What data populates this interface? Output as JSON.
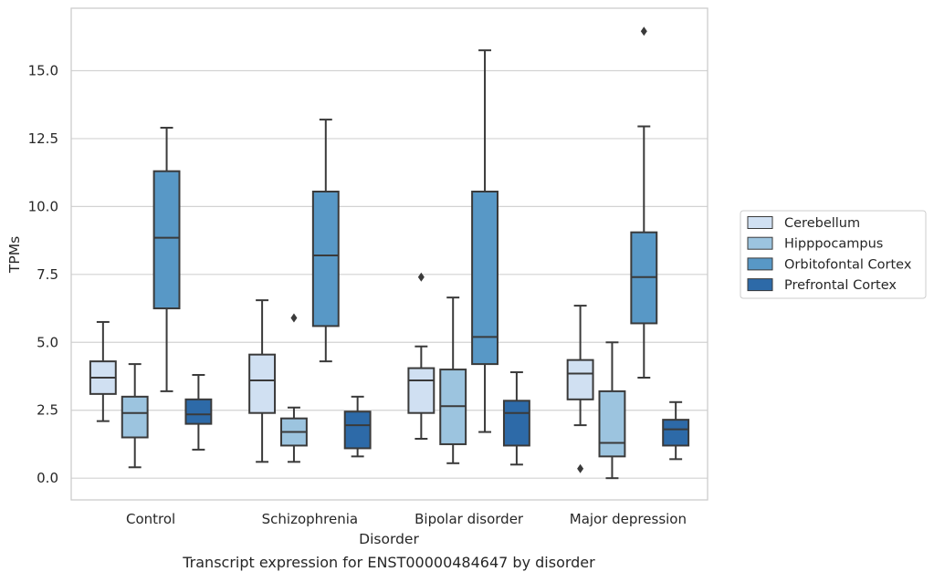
{
  "caption": "Transcript expression for ENST00000484647 by disorder",
  "chart_data": {
    "type": "boxplot",
    "title": "",
    "xlabel": "Disorder",
    "ylabel": "TPMs",
    "ylim": [
      -0.8,
      17.3
    ],
    "yticks": [
      0.0,
      2.5,
      5.0,
      7.5,
      10.0,
      12.5,
      15.0
    ],
    "ytick_labels": [
      "0.0",
      "2.5",
      "5.0",
      "7.5",
      "10.0",
      "12.5",
      "15.0"
    ],
    "grid": "horizontal",
    "legend_position": "right",
    "categories": [
      "Control",
      "Schizophrenia",
      "Bipolar disorder",
      "Major depression"
    ],
    "series": [
      {
        "name": "Cerebellum",
        "color": "#d0e0f2",
        "boxes": [
          {
            "whislo": 2.1,
            "q1": 3.1,
            "med": 3.7,
            "q3": 4.3,
            "whishi": 5.75,
            "fliers": []
          },
          {
            "whislo": 0.6,
            "q1": 2.4,
            "med": 3.6,
            "q3": 4.55,
            "whishi": 6.55,
            "fliers": []
          },
          {
            "whislo": 1.45,
            "q1": 2.4,
            "med": 3.6,
            "q3": 4.05,
            "whishi": 4.85,
            "fliers": [
              7.4
            ]
          },
          {
            "whislo": 1.95,
            "q1": 2.9,
            "med": 3.85,
            "q3": 4.35,
            "whishi": 6.35,
            "fliers": [
              0.35
            ]
          }
        ]
      },
      {
        "name": "Hipppocampus",
        "color": "#9cc4df",
        "boxes": [
          {
            "whislo": 0.4,
            "q1": 1.5,
            "med": 2.4,
            "q3": 3.0,
            "whishi": 4.2,
            "fliers": []
          },
          {
            "whislo": 0.6,
            "q1": 1.2,
            "med": 1.7,
            "q3": 2.2,
            "whishi": 2.6,
            "fliers": [
              5.9
            ]
          },
          {
            "whislo": 0.55,
            "q1": 1.25,
            "med": 2.65,
            "q3": 4.0,
            "whishi": 6.65,
            "fliers": []
          },
          {
            "whislo": 0.0,
            "q1": 0.8,
            "med": 1.3,
            "q3": 3.2,
            "whishi": 5.0,
            "fliers": []
          }
        ]
      },
      {
        "name": "Orbitofontal Cortex",
        "color": "#5898c6",
        "boxes": [
          {
            "whislo": 3.2,
            "q1": 6.25,
            "med": 8.85,
            "q3": 11.3,
            "whishi": 12.9,
            "fliers": []
          },
          {
            "whislo": 4.3,
            "q1": 5.6,
            "med": 8.2,
            "q3": 10.55,
            "whishi": 13.2,
            "fliers": []
          },
          {
            "whislo": 1.7,
            "q1": 4.2,
            "med": 5.2,
            "q3": 10.55,
            "whishi": 15.75,
            "fliers": []
          },
          {
            "whislo": 3.7,
            "q1": 5.7,
            "med": 7.4,
            "q3": 9.05,
            "whishi": 12.95,
            "fliers": [
              16.45
            ]
          }
        ]
      },
      {
        "name": "Prefrontal Cortex",
        "color": "#2d6aa8",
        "boxes": [
          {
            "whislo": 1.05,
            "q1": 2.0,
            "med": 2.35,
            "q3": 2.9,
            "whishi": 3.8,
            "fliers": []
          },
          {
            "whislo": 0.8,
            "q1": 1.1,
            "med": 1.95,
            "q3": 2.45,
            "whishi": 3.0,
            "fliers": []
          },
          {
            "whislo": 0.5,
            "q1": 1.2,
            "med": 2.4,
            "q3": 2.85,
            "whishi": 3.9,
            "fliers": []
          },
          {
            "whislo": 0.7,
            "q1": 1.2,
            "med": 1.8,
            "q3": 2.15,
            "whishi": 2.8,
            "fliers": []
          }
        ]
      }
    ]
  }
}
